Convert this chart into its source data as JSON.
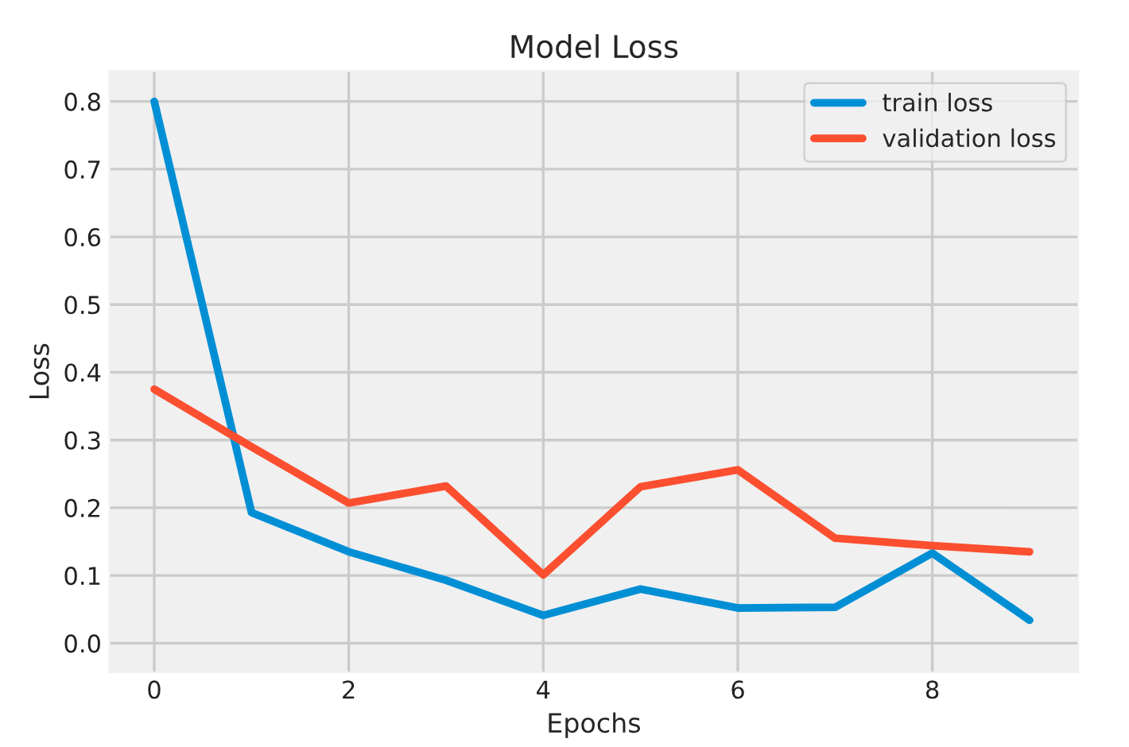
{
  "chart_data": {
    "type": "line",
    "title": "Model Loss",
    "xlabel": "Epochs",
    "ylabel": "Loss",
    "x": [
      0,
      1,
      2,
      3,
      4,
      5,
      6,
      7,
      8,
      9
    ],
    "series": [
      {
        "name": "train loss",
        "color": "#008fd5",
        "values": [
          0.8,
          0.193,
          0.135,
          0.093,
          0.041,
          0.08,
          0.052,
          0.053,
          0.133,
          0.034
        ]
      },
      {
        "name": "validation loss",
        "color": "#fc4f30",
        "values": [
          0.375,
          0.29,
          0.207,
          0.232,
          0.101,
          0.231,
          0.256,
          0.155,
          0.144,
          0.135
        ]
      }
    ],
    "xlim": [
      -0.46,
      9.5
    ],
    "ylim": [
      -0.043,
      0.845
    ],
    "xticks": [
      0,
      2,
      4,
      6,
      8
    ],
    "yticks": [
      {
        "value": 0,
        "label": "0.0"
      },
      0.1,
      0.2,
      0.3,
      0.4,
      0.5,
      0.6,
      0.7,
      0.8
    ],
    "grid": true,
    "legend": "top right",
    "line_style": "solid",
    "marker": "none"
  }
}
